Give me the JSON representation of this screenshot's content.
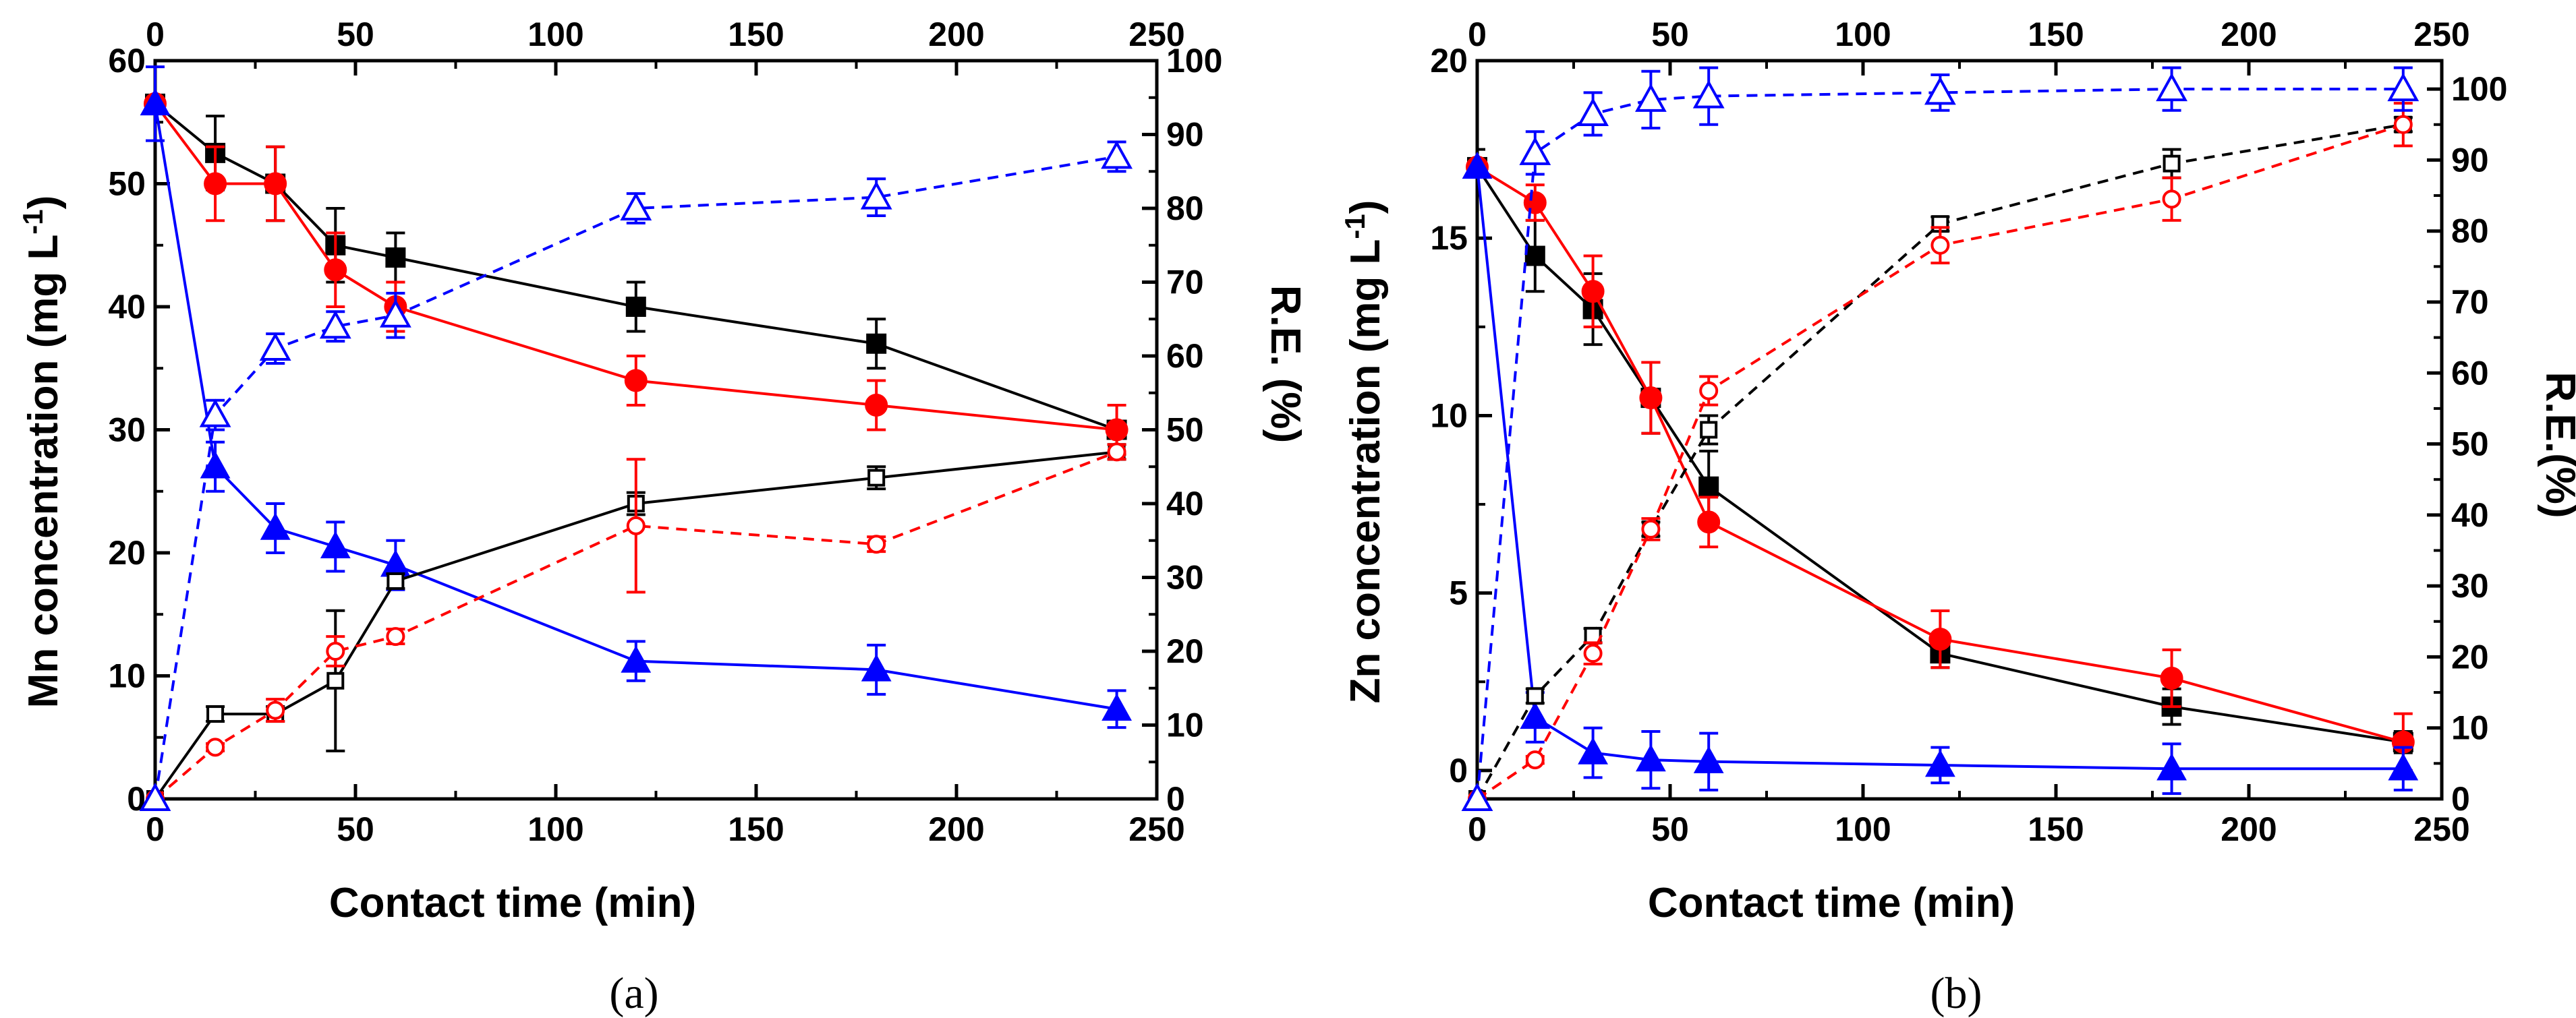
{
  "chart_data": [
    {
      "type": "line",
      "panel_label": "(a)",
      "xlabel": "Contact time (min)",
      "ylabel_left": "Mn concentration (mg L",
      "ylabel_left_sup": "-1",
      "ylabel_left_close": ")",
      "ylabel_right": "R.E. (%)",
      "xlim": [
        0,
        250
      ],
      "ylim_left": [
        0,
        60
      ],
      "ylim_right": [
        0,
        100
      ],
      "x_ticks": [
        "0",
        "50",
        "100",
        "150",
        "200",
        "250"
      ],
      "x_top_ticks": [
        "0",
        "50",
        "100",
        "150",
        "200",
        "250"
      ],
      "y_left_ticks": [
        "0",
        "10",
        "20",
        "30",
        "40",
        "50",
        "60"
      ],
      "y_right_ticks": [
        "0",
        "10",
        "20",
        "30",
        "40",
        "50",
        "60",
        "70",
        "80",
        "90",
        "100"
      ],
      "series": [
        {
          "name": "black concentration",
          "axis": "left",
          "color": "#000000",
          "marker": "square",
          "filled": true,
          "dashed": false,
          "x": [
            0,
            15,
            30,
            45,
            60,
            120,
            180,
            240
          ],
          "y": [
            56.5,
            52.5,
            50,
            45,
            44,
            40,
            37,
            30
          ],
          "err": [
            0,
            3,
            3,
            3,
            2,
            2,
            2,
            0
          ]
        },
        {
          "name": "red concentration",
          "axis": "left",
          "color": "#ff0000",
          "marker": "circle",
          "filled": true,
          "dashed": false,
          "x": [
            0,
            15,
            30,
            45,
            60,
            120,
            180,
            240
          ],
          "y": [
            56.5,
            50,
            50,
            43,
            40,
            34,
            32,
            30
          ],
          "err": [
            0,
            3,
            3,
            3,
            2,
            2,
            2,
            2
          ]
        },
        {
          "name": "blue concentration",
          "axis": "left",
          "color": "#0000ff",
          "marker": "triangle",
          "filled": true,
          "dashed": false,
          "x": [
            0,
            15,
            30,
            45,
            60,
            120,
            180,
            240
          ],
          "y": [
            56.5,
            27,
            22,
            20.5,
            19,
            11.2,
            10.5,
            7.3
          ],
          "err": [
            3,
            2,
            2,
            2,
            2,
            1.6,
            2,
            1.5
          ]
        },
        {
          "name": "black R.E.",
          "axis": "right",
          "color": "#000000",
          "marker": "square",
          "filled": false,
          "dashed": false,
          "x": [
            0,
            15,
            30,
            45,
            60,
            120,
            180,
            240
          ],
          "y": [
            0,
            11.5,
            11.5,
            16,
            29.5,
            40,
            43.5,
            47
          ],
          "err": [
            0,
            1,
            1,
            9.5,
            1,
            1.5,
            1.5,
            1
          ]
        },
        {
          "name": "red R.E.",
          "axis": "right",
          "color": "#ff0000",
          "marker": "circle",
          "filled": false,
          "dashed": true,
          "x": [
            0,
            15,
            30,
            45,
            60,
            120,
            180,
            240
          ],
          "y": [
            0,
            7,
            12,
            20,
            22,
            37,
            34.5,
            47
          ],
          "err": [
            0,
            0.5,
            1.5,
            2,
            1,
            9,
            1,
            1
          ]
        },
        {
          "name": "blue R.E.",
          "axis": "right",
          "color": "#0000ff",
          "marker": "triangle",
          "filled": false,
          "dashed": true,
          "x": [
            0,
            15,
            30,
            45,
            60,
            120,
            180,
            240
          ],
          "y": [
            0,
            52,
            61,
            64,
            65.5,
            80,
            81.5,
            87
          ],
          "err": [
            0,
            2,
            2,
            2,
            3,
            2,
            2.5,
            2
          ]
        }
      ]
    },
    {
      "type": "line",
      "panel_label": "(b)",
      "xlabel": "Contact time (min)",
      "ylabel_left": "Zn concentration (mg L",
      "ylabel_left_sup": "-1",
      "ylabel_left_close": ")",
      "ylabel_right": "R.E.(%)",
      "xlim": [
        0,
        250
      ],
      "ylim_left": [
        -0.8,
        20
      ],
      "ylim_right": [
        0,
        104
      ],
      "x_ticks": [
        "0",
        "50",
        "100",
        "150",
        "200",
        "250"
      ],
      "x_top_ticks": [
        "0",
        "50",
        "100",
        "150",
        "200",
        "250"
      ],
      "y_left_ticks": [
        "0",
        "5",
        "10",
        "15",
        "20"
      ],
      "y_right_ticks": [
        "0",
        "10",
        "20",
        "30",
        "40",
        "50",
        "60",
        "70",
        "80",
        "90",
        "100"
      ],
      "series": [
        {
          "name": "black concentration",
          "axis": "left",
          "color": "#000000",
          "marker": "square",
          "filled": true,
          "dashed": false,
          "x": [
            0,
            15,
            30,
            45,
            60,
            120,
            180,
            240
          ],
          "y": [
            17,
            14.5,
            13,
            10.5,
            8,
            3.3,
            1.8,
            0.8
          ],
          "err": [
            0,
            1,
            1,
            1,
            1,
            0.4,
            0.5,
            0.3
          ]
        },
        {
          "name": "red concentration",
          "axis": "left",
          "color": "#ff0000",
          "marker": "circle",
          "filled": true,
          "dashed": false,
          "x": [
            0,
            15,
            30,
            45,
            60,
            120,
            180,
            240
          ],
          "y": [
            17,
            16,
            13.5,
            10.5,
            7,
            3.7,
            2.6,
            0.8
          ],
          "err": [
            0,
            0.5,
            1,
            1,
            0.7,
            0.8,
            0.8,
            0.8
          ]
        },
        {
          "name": "blue concentration",
          "axis": "left",
          "color": "#0000ff",
          "marker": "triangle",
          "filled": true,
          "dashed": false,
          "x": [
            0,
            15,
            30,
            45,
            60,
            120,
            180,
            240
          ],
          "y": [
            17,
            1.5,
            0.5,
            0.3,
            0.25,
            0.15,
            0.05,
            0.05
          ],
          "err": [
            0,
            0.7,
            0.7,
            0.8,
            0.8,
            0.5,
            0.7,
            0.6
          ]
        },
        {
          "name": "black R.E.",
          "axis": "right",
          "color": "#000000",
          "marker": "square",
          "filled": false,
          "dashed": true,
          "x": [
            0,
            15,
            30,
            45,
            60,
            120,
            180,
            240
          ],
          "y": [
            0,
            14.5,
            23,
            38,
            52,
            81,
            89.5,
            95
          ],
          "err": [
            0,
            1,
            1,
            1,
            2,
            1,
            2,
            1
          ]
        },
        {
          "name": "red R.E.",
          "axis": "right",
          "color": "#ff0000",
          "marker": "circle",
          "filled": false,
          "dashed": true,
          "x": [
            0,
            15,
            30,
            45,
            60,
            120,
            180,
            240
          ],
          "y": [
            0,
            5.5,
            20.5,
            38,
            57.5,
            78,
            84.5,
            95
          ],
          "err": [
            0,
            0.5,
            1.5,
            1.5,
            2,
            2.5,
            3,
            3
          ]
        },
        {
          "name": "blue R.E.",
          "axis": "right",
          "color": "#0000ff",
          "marker": "triangle",
          "filled": false,
          "dashed": true,
          "x": [
            0,
            15,
            30,
            45,
            60,
            120,
            180,
            240
          ],
          "y": [
            0,
            91,
            96.5,
            98.5,
            99,
            99.5,
            100,
            100
          ],
          "err": [
            0,
            3,
            3,
            4,
            4,
            2.5,
            3,
            3
          ]
        }
      ]
    }
  ]
}
